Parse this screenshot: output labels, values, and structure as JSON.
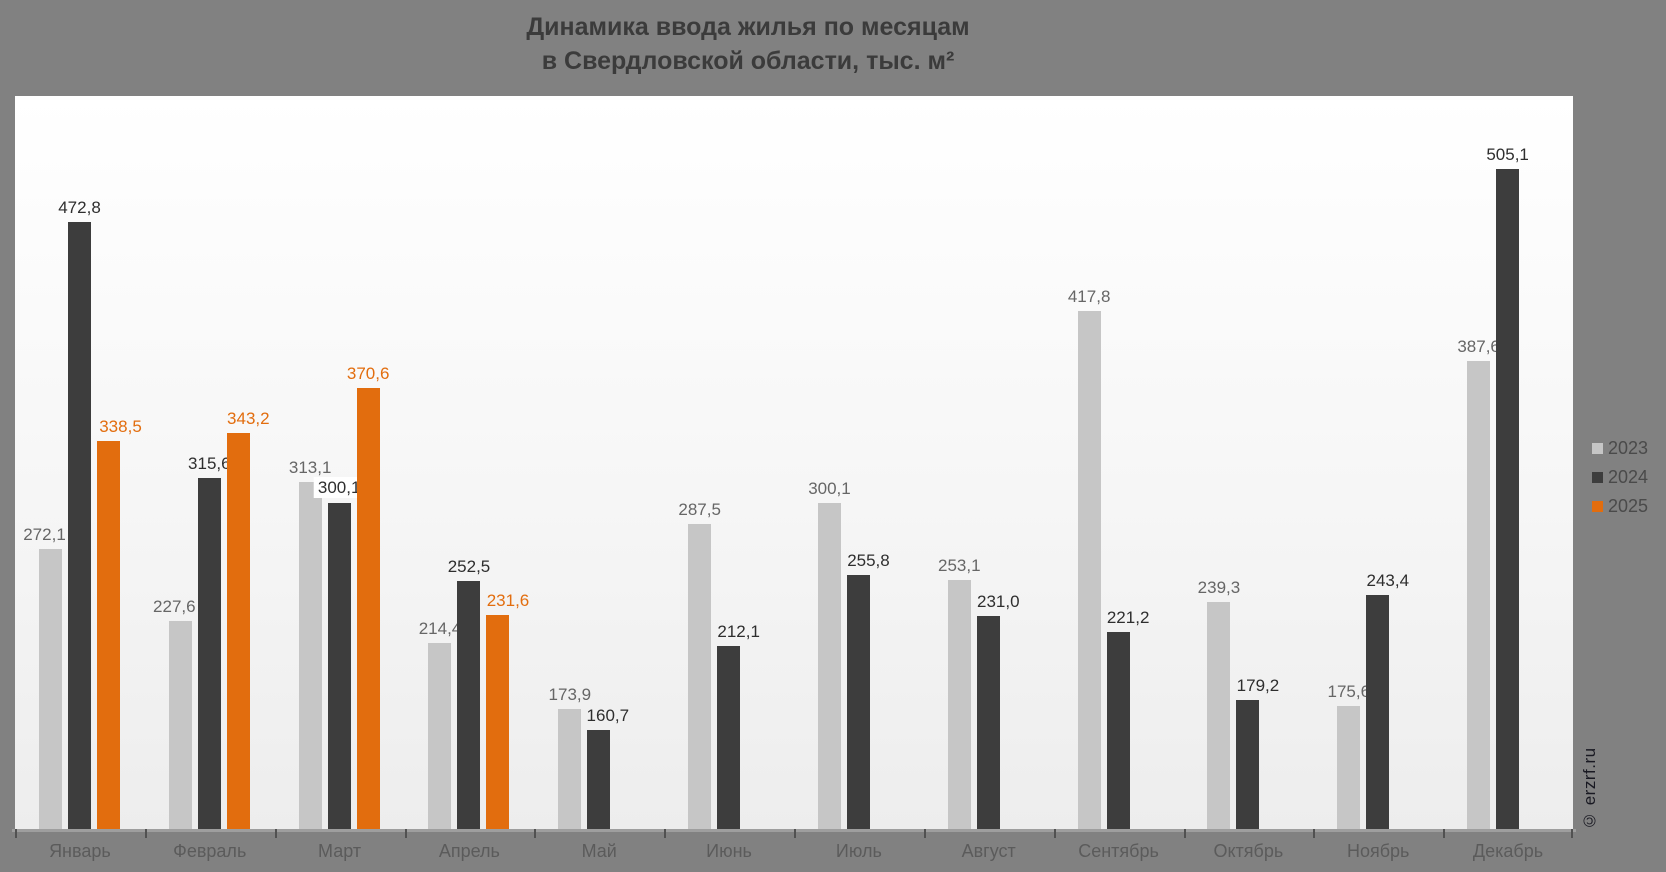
{
  "title": {
    "line1": "Динамика ввода жилья по месяцам",
    "line2": "в Свердловской области, тыс. м²"
  },
  "watermark": "© erzrf.ru",
  "legend": {
    "items": [
      {
        "label": "2023",
        "color": "#c6c6c6"
      },
      {
        "label": "2024",
        "color": "#3d3d3d"
      },
      {
        "label": "2025",
        "color": "#e26d0e"
      }
    ]
  },
  "chart_data": {
    "type": "bar",
    "title": "Динамика ввода жилья по месяцам в Свердловской области, тыс. м²",
    "xlabel": "",
    "ylabel": "тыс. м²",
    "grid": false,
    "legend_position": "right",
    "decimal_separator": ",",
    "value_axis": {
      "min": 100,
      "max": 550,
      "visible": false
    },
    "categories": [
      "Январь",
      "Февраль",
      "Март",
      "Апрель",
      "Май",
      "Июнь",
      "Июль",
      "Август",
      "Сентябрь",
      "Октябрь",
      "Ноябрь",
      "Декабрь"
    ],
    "series": [
      {
        "name": "2023",
        "color": "#c6c6c6",
        "label_color": "#666666",
        "values": [
          272.1,
          227.6,
          313.1,
          214.4,
          173.9,
          287.5,
          300.1,
          253.1,
          417.8,
          239.3,
          175.6,
          387.6
        ],
        "label_dx": [
          -6,
          -6,
          0,
          0,
          0,
          0,
          0,
          0,
          0,
          0,
          0,
          0
        ]
      },
      {
        "name": "2024",
        "color": "#3d3d3d",
        "label_color": "#2e2e2e",
        "values": [
          472.8,
          315.6,
          300.1,
          252.5,
          160.7,
          212.1,
          255.8,
          231.0,
          221.2,
          179.2,
          243.4,
          505.1
        ],
        "label_dx": [
          0,
          0,
          0,
          0,
          9,
          10,
          10,
          10,
          10,
          10,
          10,
          0
        ]
      },
      {
        "name": "2025",
        "color": "#e26d0e",
        "label_color": "#e26d0e",
        "values": [
          338.5,
          343.2,
          370.6,
          231.6,
          null,
          null,
          null,
          null,
          null,
          null,
          null,
          null
        ],
        "label_dx": [
          12,
          10,
          0,
          10,
          0,
          0,
          0,
          0,
          0,
          0,
          0,
          0
        ]
      }
    ],
    "boxed_labels": [
      {
        "series": "2024",
        "category": "Март"
      }
    ]
  }
}
